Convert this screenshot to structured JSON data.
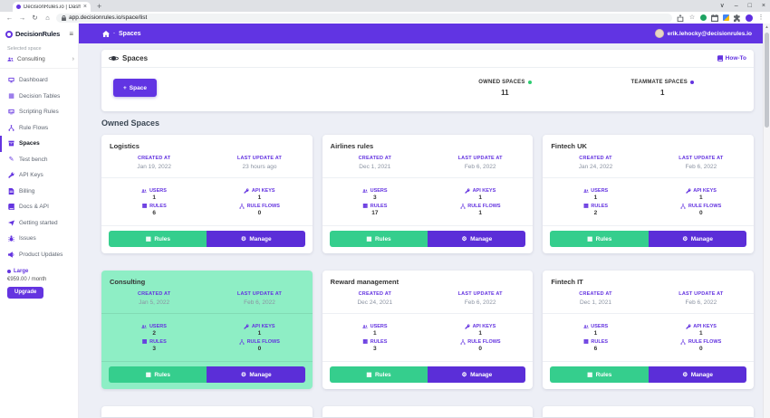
{
  "browser": {
    "tab_title": "DecisionRules.io | Dashboard",
    "url": "app.decisionrules.io/space/list"
  },
  "icons": {
    "back-icon": "←",
    "forward-icon": "→",
    "reload-icon": "↻",
    "nav-home-icon": "⌂",
    "tab-close-icon": "×",
    "new-tab-icon": "+",
    "menu-chevron-icon": "∨",
    "minimize-icon": "–",
    "maximize-icon": "□",
    "close-icon": "×",
    "star-icon": "☆",
    "kebab-icon": "⋮",
    "hamburger-icon": "≡",
    "chevron-right-icon": "›",
    "breadcrumb-sep": "-",
    "plus-icon": "+",
    "grid-icon": "▦",
    "pencil-icon": "✎",
    "gear-icon": "⚙"
  },
  "sidebar": {
    "logo_text": "DecisionRules",
    "selected_space_label": "Selected space",
    "selected_space": "Consulting",
    "items": [
      {
        "label": "Dashboard",
        "icon": "monitor-icon"
      },
      {
        "label": "Decision Tables",
        "icon": "grid-icon"
      },
      {
        "label": "Scripting Rules",
        "icon": "script-icon"
      },
      {
        "label": "Rule Flows",
        "icon": "flow-icon"
      },
      {
        "label": "Spaces",
        "icon": "box-icon",
        "active": true
      },
      {
        "label": "Test bench",
        "icon": "pencil-icon"
      },
      {
        "label": "API Keys",
        "icon": "key-icon"
      },
      {
        "label": "Billing",
        "icon": "doc-icon"
      },
      {
        "label": "Docs & API",
        "icon": "book-icon"
      },
      {
        "label": "Getting started",
        "icon": "send-icon"
      },
      {
        "label": "Issues",
        "icon": "bug-icon"
      },
      {
        "label": "Product Updates",
        "icon": "megaphone-icon"
      }
    ],
    "plan": {
      "name": "Large",
      "price": "€959.00 / month",
      "upgrade_label": "Upgrade"
    }
  },
  "header": {
    "breadcrumb": "Spaces",
    "user_email": "erik.lehocky@decisionrules.io"
  },
  "panel": {
    "title": "Spaces",
    "howto_label": "How-To",
    "add_space_label": "Space",
    "owned_label": "OWNED SPACES",
    "owned_count": "11",
    "teammate_label": "TEAMMATE SPACES",
    "teammate_count": "1"
  },
  "section_title": "Owned Spaces",
  "card_labels": {
    "created": "CREATED AT",
    "updated": "LAST UPDATE AT",
    "users": "USERS",
    "api_keys": "API KEYS",
    "rules": "RULES",
    "rule_flows": "RULE FLOWS",
    "rules_button": "Rules",
    "manage_button": "Manage"
  },
  "spaces": [
    {
      "name": "Logistics",
      "created": "Jan 19, 2022",
      "updated": "23 hours ago",
      "users": "1",
      "api_keys": "1",
      "rules": "6",
      "rule_flows": "0",
      "highlight": false
    },
    {
      "name": "Airlines rules",
      "created": "Dec 1, 2021",
      "updated": "Feb 6, 2022",
      "users": "3",
      "api_keys": "1",
      "rules": "17",
      "rule_flows": "1",
      "highlight": false
    },
    {
      "name": "Fintech UK",
      "created": "Jan 24, 2022",
      "updated": "Feb 6, 2022",
      "users": "1",
      "api_keys": "1",
      "rules": "2",
      "rule_flows": "0",
      "highlight": false
    },
    {
      "name": "Consulting",
      "created": "Jan 5, 2022",
      "updated": "Feb 6, 2022",
      "users": "2",
      "api_keys": "1",
      "rules": "3",
      "rule_flows": "0",
      "highlight": true
    },
    {
      "name": "Reward management",
      "created": "Dec 24, 2021",
      "updated": "Feb 6, 2022",
      "users": "1",
      "api_keys": "1",
      "rules": "3",
      "rule_flows": "0",
      "highlight": false
    },
    {
      "name": "Fintech IT",
      "created": "Dec 1, 2021",
      "updated": "Feb 6, 2022",
      "users": "1",
      "api_keys": "1",
      "rules": "6",
      "rule_flows": "0",
      "highlight": false
    }
  ],
  "colors": {
    "accent": "#6134e3",
    "button_purple": "#5b2ed8",
    "button_green": "#35ce8d",
    "mint_card": "#8eeec5",
    "owned_dot": "#2ecc71",
    "teammate_dot": "#6434e0"
  }
}
